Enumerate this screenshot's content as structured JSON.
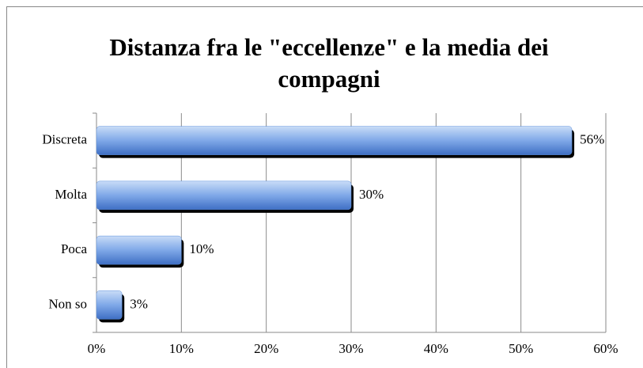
{
  "chart_data": {
    "type": "bar",
    "orientation": "horizontal",
    "title": "Distanza fra le \"eccellenze\" e la media dei compagni",
    "categories": [
      "Discreta",
      "Molta",
      "Poca",
      "Non so"
    ],
    "values": [
      56,
      30,
      10,
      3
    ],
    "value_labels": [
      "56%",
      "30%",
      "10%",
      "3%"
    ],
    "color": "#5b8fdc",
    "xlim": [
      0,
      60
    ],
    "xticks": [
      {
        "value": 0,
        "label": "0%"
      },
      {
        "value": 10,
        "label": "10%"
      },
      {
        "value": 20,
        "label": "20%"
      },
      {
        "value": 30,
        "label": "30%"
      },
      {
        "value": 40,
        "label": "40%"
      },
      {
        "value": 50,
        "label": "50%"
      },
      {
        "value": 60,
        "label": "60%"
      }
    ],
    "grid": true
  }
}
